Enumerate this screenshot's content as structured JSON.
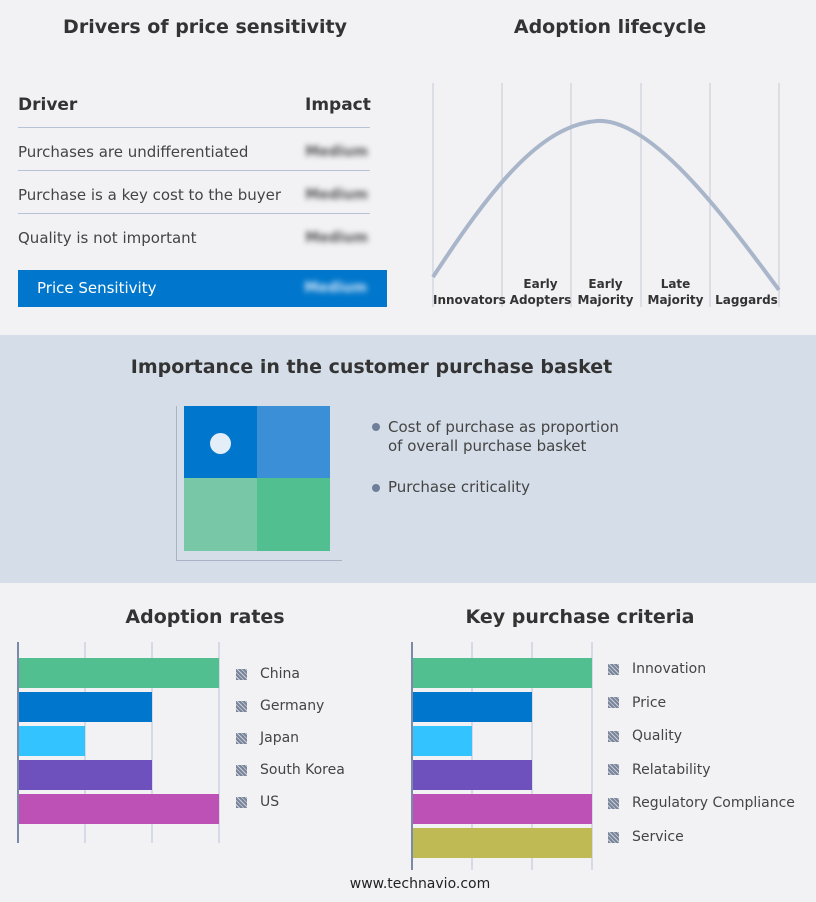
{
  "drivers": {
    "title": "Drivers of price sensitivity",
    "col_driver": "Driver",
    "col_impact": "Impact",
    "rows": [
      {
        "driver": "Purchases are undifferentiated",
        "impact": "Medium"
      },
      {
        "driver": "Purchase is a key cost to the buyer",
        "impact": "Medium"
      },
      {
        "driver": "Quality is not important",
        "impact": "Medium"
      }
    ],
    "summary": {
      "label": "Price Sensitivity",
      "impact": "Medium",
      "color": "#0077cc"
    }
  },
  "lifecycle": {
    "title": "Adoption lifecycle",
    "stages": [
      "Innovators",
      "Early Adopters",
      "Early Majority",
      "Late Majority",
      "Laggards"
    ]
  },
  "basket": {
    "title": "Importance in the customer purchase basket",
    "legend": [
      "Cost of purchase as proportion of overall purchase basket",
      "Purchase criticality"
    ],
    "colors": [
      "#0077cc",
      "#3a8fd6",
      "#78c8a8",
      "#52bf90"
    ]
  },
  "chart_data": [
    {
      "type": "bar",
      "title": "Adoption rates",
      "categories": [
        "China",
        "Germany",
        "Japan",
        "South Korea",
        "US"
      ],
      "values": [
        3,
        2,
        1,
        2,
        3
      ],
      "xlim": [
        0,
        3
      ],
      "grid": true,
      "legend": "right",
      "colors": [
        "#52bf90",
        "#0077cc",
        "#33c3ff",
        "#6f51bd",
        "#bd51b5"
      ]
    },
    {
      "type": "bar",
      "title": "Key purchase criteria",
      "categories": [
        "Innovation",
        "Price",
        "Quality",
        "Relatability",
        "Regulatory Compliance",
        "Service"
      ],
      "values": [
        3,
        2,
        1,
        2,
        3,
        3
      ],
      "xlim": [
        0,
        3
      ],
      "grid": true,
      "legend": "right",
      "colors": [
        "#52bf90",
        "#0077cc",
        "#33c3ff",
        "#6f51bd",
        "#bd51b5",
        "#c0ba55"
      ]
    }
  ],
  "footer": "www.technavio.com"
}
